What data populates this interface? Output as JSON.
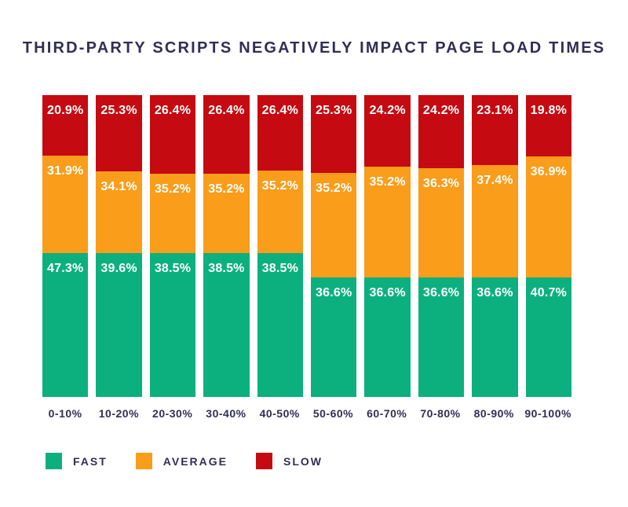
{
  "chart_data": {
    "type": "bar",
    "subtype": "stacked-vertical",
    "title": "THIRD-PARTY SCRIPTS NEGATIVELY IMPACT PAGE LOAD TIMES",
    "categories": [
      "0-10%",
      "10-20%",
      "20-30%",
      "30-40%",
      "40-50%",
      "50-60%",
      "60-70%",
      "70-80%",
      "80-90%",
      "90-100%"
    ],
    "series": [
      {
        "name": "SLOW",
        "stack_position": "top",
        "color": "#c50a11",
        "values": [
          20.9,
          25.3,
          26.4,
          26.4,
          26.4,
          25.3,
          24.2,
          24.2,
          23.1,
          19.8
        ]
      },
      {
        "name": "AVERAGE",
        "stack_position": "middle",
        "color": "#f99d1b",
        "values": [
          31.9,
          34.1,
          35.2,
          35.2,
          35.2,
          35.2,
          35.2,
          36.3,
          37.4,
          36.9
        ]
      },
      {
        "name": "FAST",
        "stack_position": "bottom",
        "color": "#0cb07e",
        "values": [
          47.3,
          39.6,
          38.5,
          38.5,
          38.5,
          36.6,
          36.6,
          36.6,
          36.6,
          40.7
        ]
      }
    ],
    "value_label_suffix": "%",
    "legend": {
      "position": "bottom-left",
      "entries": [
        {
          "label": "FAST",
          "color": "#0cb07e"
        },
        {
          "label": "AVERAGE",
          "color": "#f99d1b"
        },
        {
          "label": "SLOW",
          "color": "#c50a11"
        }
      ]
    },
    "layout": {
      "grid": false,
      "y_axis_visible": false,
      "x_axis_line_visible": false,
      "drawn_segment_heights_pct": [
        [
          20.1,
          32.3,
          47.6
        ],
        [
          25.3,
          27.1,
          47.6
        ],
        [
          26.0,
          26.4,
          47.6
        ],
        [
          26.0,
          26.4,
          47.6
        ],
        [
          25.0,
          27.4,
          47.6
        ],
        [
          25.8,
          34.6,
          39.6
        ],
        [
          23.7,
          36.7,
          39.6
        ],
        [
          24.2,
          36.2,
          39.6
        ],
        [
          23.2,
          37.2,
          39.6
        ],
        [
          20.3,
          40.1,
          39.6
        ]
      ]
    },
    "colors": {
      "background": "#ffffff",
      "text": "#322e55",
      "value_labels": "#ffffff"
    }
  }
}
